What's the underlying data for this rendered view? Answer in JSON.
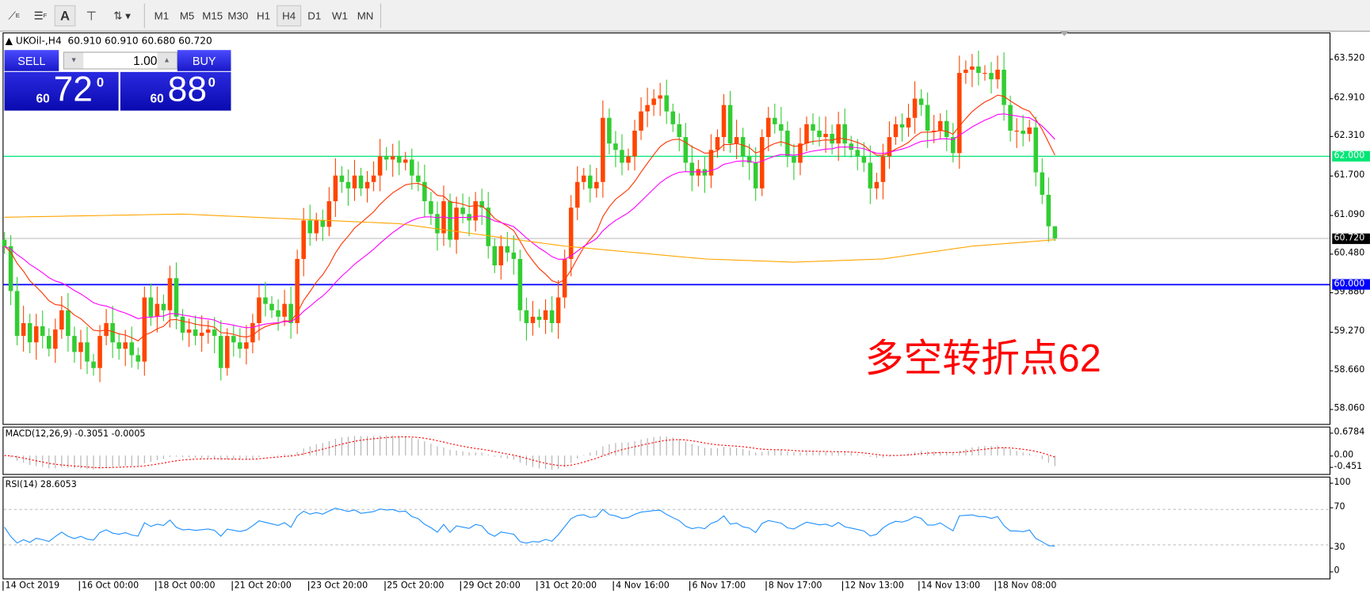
{
  "toolbar": {
    "icons": [
      "crosshair-e-icon",
      "fibonacci-f-icon",
      "text-a-icon",
      "text-label-t-icon",
      "arrows-icon"
    ],
    "active_icon": "text-a-icon",
    "timeframes": [
      "M1",
      "M5",
      "M15",
      "M30",
      "H1",
      "H4",
      "D1",
      "W1",
      "MN"
    ],
    "active_timeframe": "H4"
  },
  "chart": {
    "header": "UKOil-,H4",
    "ohlc": "60.910 60.910 60.680 60.720"
  },
  "trade_panel": {
    "sell_label": "SELL",
    "buy_label": "BUY",
    "volume": "1.00",
    "sell_prefix": "60",
    "sell_big": "72",
    "sell_sup": "0",
    "buy_prefix": "60",
    "buy_big": "88",
    "buy_sup": "0"
  },
  "price_axis": {
    "ticks": [
      "63.520",
      "62.910",
      "62.310",
      "61.700",
      "61.090",
      "60.480",
      "59.880",
      "59.270",
      "58.660",
      "58.060"
    ],
    "levels": [
      {
        "value": "62.000",
        "color": "#00e676"
      },
      {
        "value": "60.000",
        "color": "#0000ff"
      }
    ],
    "current_price": "60.720"
  },
  "annotation": {
    "text": "多空转折点62",
    "color": "#ff0000"
  },
  "macd": {
    "label": "MACD(12,26,9) -0.3051 -0.0005",
    "ticks": [
      "0.6784",
      "0.00",
      "-0.451"
    ]
  },
  "rsi": {
    "label": "RSI(14) 28.6053",
    "ticks": [
      "100",
      "70",
      "30",
      "0"
    ]
  },
  "time_axis": [
    "14 Oct 2019",
    "16 Oct 00:00",
    "18 Oct 00:00",
    "21 Oct 20:00",
    "23 Oct 20:00",
    "25 Oct 20:00",
    "29 Oct 20:00",
    "31 Oct 20:00",
    "4 Nov 16:00",
    "6 Nov 17:00",
    "8 Nov 17:00",
    "12 Nov 13:00",
    "14 Nov 13:00",
    "18 Nov 08:00"
  ],
  "colors": {
    "bull": "#ff4500",
    "bear": "#32cd32",
    "ma_fast": "#ff3300",
    "ma_mid": "#ff00ff",
    "ma_long": "#ffa500",
    "macd_signal": "#ff0000",
    "rsi": "#1e90ff"
  },
  "chart_data": {
    "type": "candlestick",
    "symbol": "UKOil-",
    "timeframe": "H4",
    "ylim": [
      57.9,
      63.8
    ],
    "last_candle": {
      "open": 60.91,
      "high": 60.91,
      "low": 60.68,
      "close": 60.72
    },
    "closes": [
      60.6,
      59.9,
      59.2,
      59.4,
      59.1,
      59.35,
      59.2,
      59.0,
      59.3,
      59.6,
      59.2,
      58.95,
      59.1,
      58.8,
      58.7,
      59.2,
      59.4,
      59.1,
      59.0,
      59.1,
      58.9,
      58.8,
      59.8,
      59.5,
      59.7,
      59.6,
      60.1,
      59.5,
      59.25,
      59.3,
      59.2,
      59.25,
      59.3,
      59.2,
      58.7,
      59.2,
      59.1,
      59.0,
      59.1,
      59.4,
      59.8,
      59.7,
      59.6,
      59.5,
      59.7,
      59.4,
      60.4,
      61.0,
      60.8,
      61.0,
      60.9,
      61.3,
      61.7,
      61.6,
      61.5,
      61.7,
      61.5,
      61.6,
      61.7,
      62.0,
      61.95,
      62.0,
      61.9,
      61.95,
      61.7,
      61.6,
      61.3,
      61.1,
      60.8,
      61.3,
      60.7,
      61.2,
      61.1,
      61.0,
      61.3,
      61.2,
      60.6,
      60.3,
      60.6,
      60.5,
      60.4,
      59.6,
      59.4,
      59.5,
      59.45,
      59.6,
      59.4,
      59.8,
      60.4,
      61.2,
      61.6,
      61.7,
      61.5,
      61.6,
      62.6,
      62.2,
      62.1,
      61.9,
      62.0,
      62.4,
      62.7,
      62.8,
      62.9,
      62.95,
      62.7,
      62.5,
      62.3,
      61.9,
      61.7,
      61.8,
      61.7,
      62.1,
      62.3,
      62.8,
      62.2,
      62.3,
      62.0,
      61.9,
      61.5,
      62.3,
      62.6,
      62.5,
      62.4,
      62.0,
      61.9,
      62.2,
      62.5,
      62.4,
      62.3,
      62.35,
      62.2,
      62.5,
      62.2,
      62.1,
      62.0,
      61.9,
      61.5,
      61.6,
      62.0,
      62.3,
      62.5,
      62.45,
      62.6,
      62.9,
      62.8,
      62.4,
      62.4,
      62.55,
      62.3,
      62.05,
      63.3,
      63.35,
      63.4,
      63.3,
      63.3,
      63.2,
      63.35,
      62.8,
      62.4,
      62.4,
      62.35,
      62.45,
      61.75,
      61.4,
      60.91,
      60.72
    ],
    "ma_long_points": [
      [
        0,
        61.05
      ],
      [
        28,
        61.1
      ],
      [
        62,
        60.95
      ],
      [
        88,
        60.6
      ],
      [
        110,
        60.4
      ],
      [
        124,
        60.35
      ],
      [
        138,
        60.4
      ],
      [
        152,
        60.6
      ],
      [
        165,
        60.7
      ]
    ],
    "horizontal_levels": [
      62.0,
      60.0
    ]
  }
}
